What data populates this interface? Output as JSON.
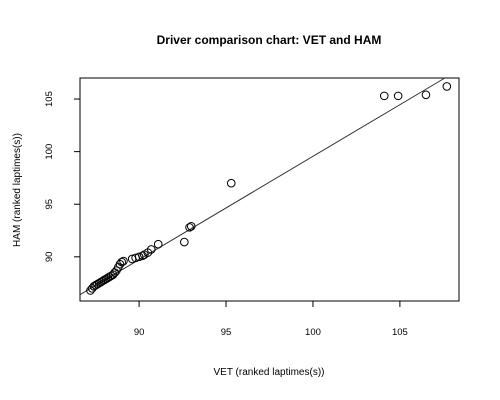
{
  "chart_data": {
    "type": "scatter",
    "title": "Driver comparison chart: VET and HAM",
    "xlabel": "VET (ranked laptimes(s))",
    "ylabel": "HAM (ranked laptimes(s))",
    "xlim": [
      86.6,
      108.4
    ],
    "ylim": [
      85.8,
      107.0
    ],
    "x_ticks": [
      90,
      95,
      100,
      105
    ],
    "y_ticks": [
      90,
      95,
      100,
      105
    ],
    "grid": false,
    "points": [
      [
        87.2,
        86.8
      ],
      [
        87.3,
        87.0
      ],
      [
        87.4,
        87.2
      ],
      [
        87.5,
        87.3
      ],
      [
        87.6,
        87.4
      ],
      [
        87.7,
        87.5
      ],
      [
        87.8,
        87.6
      ],
      [
        87.9,
        87.7
      ],
      [
        88.0,
        87.8
      ],
      [
        88.1,
        87.9
      ],
      [
        88.2,
        88.0
      ],
      [
        88.3,
        88.1
      ],
      [
        88.4,
        88.2
      ],
      [
        88.5,
        88.3
      ],
      [
        88.6,
        88.5
      ],
      [
        88.7,
        88.7
      ],
      [
        88.8,
        89.0
      ],
      [
        88.9,
        89.3
      ],
      [
        89.0,
        89.5
      ],
      [
        89.1,
        89.6
      ],
      [
        89.6,
        89.8
      ],
      [
        89.8,
        89.9
      ],
      [
        90.0,
        90.0
      ],
      [
        90.2,
        90.1
      ],
      [
        90.3,
        90.2
      ],
      [
        90.5,
        90.4
      ],
      [
        90.7,
        90.7
      ],
      [
        91.1,
        91.2
      ],
      [
        92.6,
        91.4
      ],
      [
        92.9,
        92.8
      ],
      [
        93.0,
        92.9
      ],
      [
        95.3,
        97.0
      ],
      [
        104.1,
        105.3
      ],
      [
        104.9,
        105.3
      ],
      [
        106.5,
        105.4
      ],
      [
        107.7,
        106.2
      ]
    ],
    "fit_line": {
      "x": [
        86.6,
        108.4
      ],
      "y": [
        86.4,
        107.8
      ]
    },
    "colors": {
      "points": "#000000",
      "line": "#333333"
    }
  }
}
